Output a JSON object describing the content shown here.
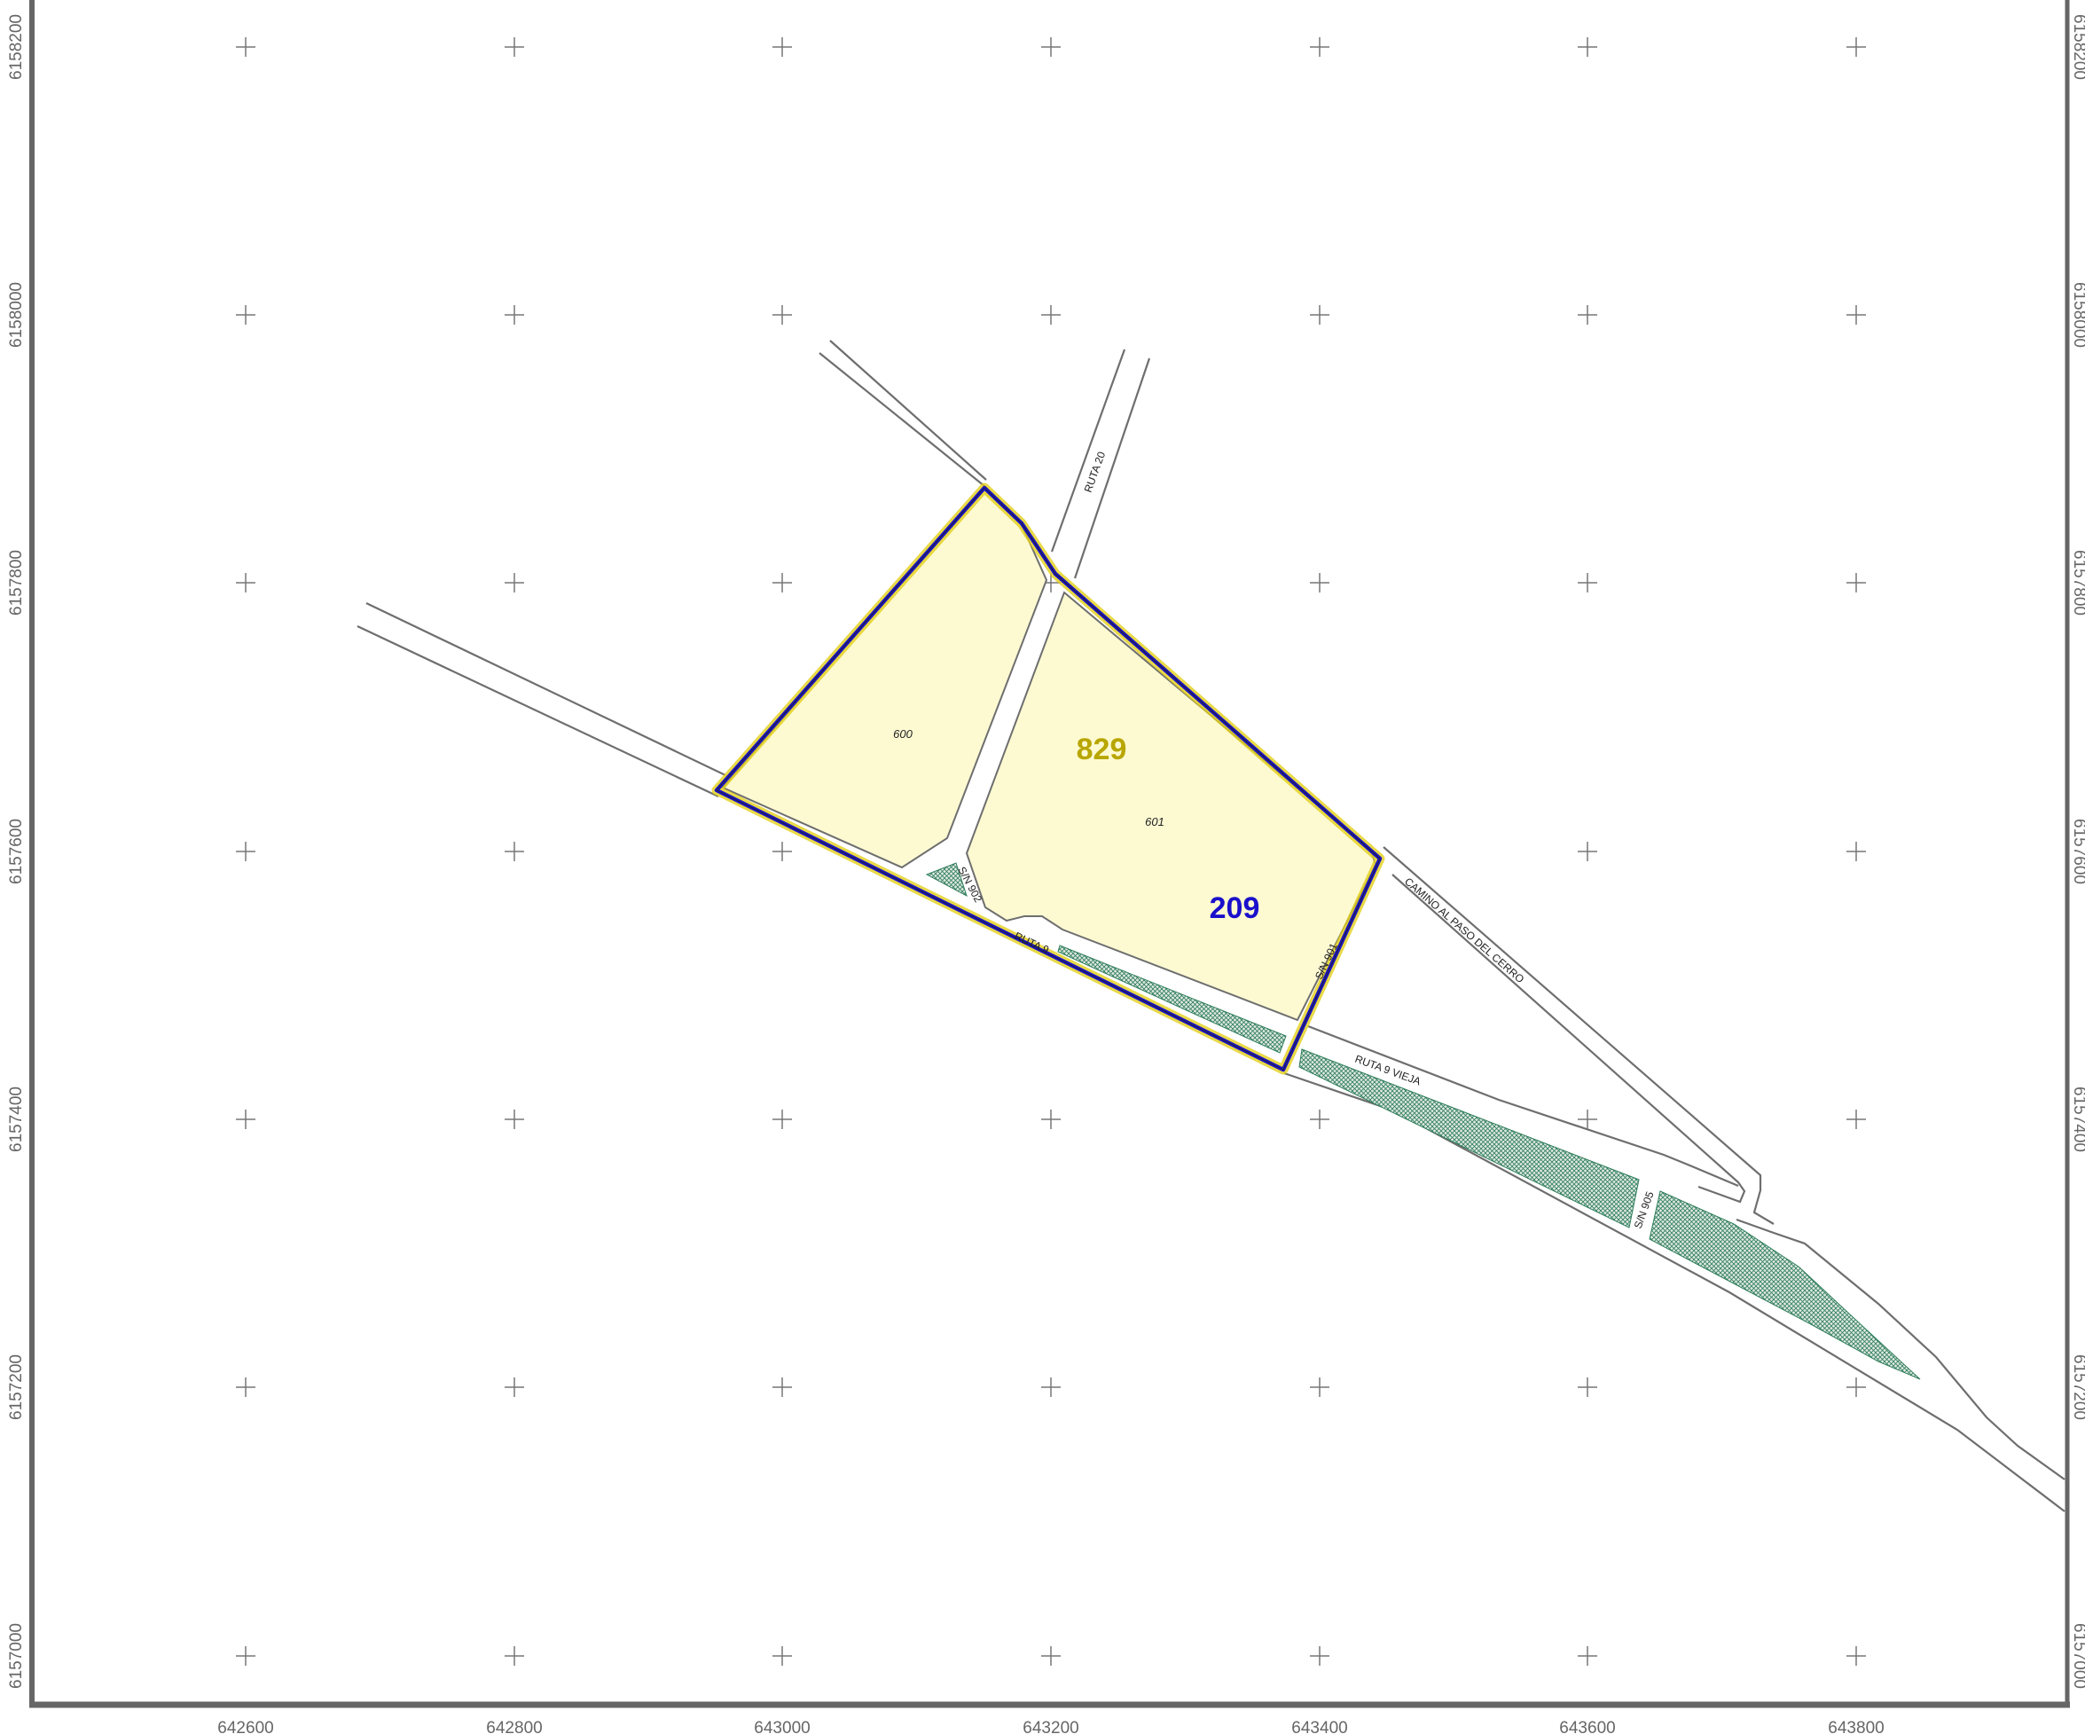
{
  "map": {
    "x_axis_labels": [
      "642600",
      "642800",
      "643000",
      "643200",
      "643400",
      "643600",
      "643800"
    ],
    "y_axis_labels": [
      "6158200",
      "6158000",
      "6157800",
      "6157600",
      "6157400",
      "6157200",
      "6157000"
    ],
    "road_labels": {
      "ruta_20": "RUTA 20",
      "ruta_9": "RUTA 9",
      "ruta_9_vieja": "RUTA 9 VIEJA",
      "camino": "CAMINO AL PASO DEL CERRO",
      "sn_902": "S/N 902",
      "sn_901": "S/N 901",
      "sn_905": "S/N 905"
    },
    "parcel_labels": {
      "p600": "600",
      "p601": "601"
    },
    "label_829": "829",
    "label_209": "209",
    "colors": {
      "parcel_fill": "#fdfad2",
      "yellow_outline": "#c8b400",
      "blue_outline": "#1a12c8",
      "label_829": "#b8a600",
      "label_209": "#1a10cc",
      "road_line": "#6e6e6e",
      "hatch": "#2e7d5a",
      "frame": "#666666"
    }
  }
}
